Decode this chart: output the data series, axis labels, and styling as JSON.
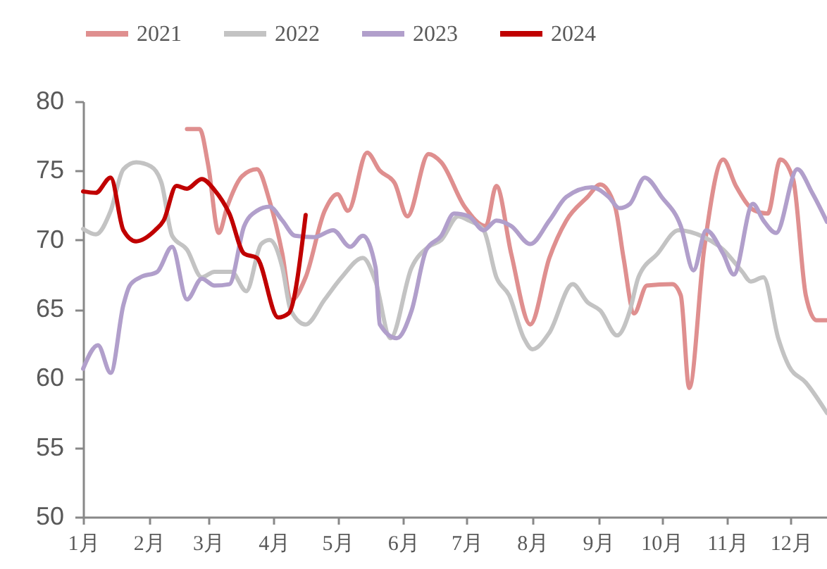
{
  "chart_data": {
    "type": "line",
    "xlim": [
      "--01-01",
      "--12-18"
    ],
    "xticks": [
      {
        "value": "--01-01",
        "label": "1月"
      },
      {
        "value": "--02-01",
        "label": "2月"
      },
      {
        "value": "--03-01",
        "label": "3月"
      },
      {
        "value": "--04-01",
        "label": "4月"
      },
      {
        "value": "--05-01",
        "label": "5月"
      },
      {
        "value": "--06-01",
        "label": "6月"
      },
      {
        "value": "--07-01",
        "label": "7月"
      },
      {
        "value": "--08-01",
        "label": "8月"
      },
      {
        "value": "--09-01",
        "label": "9月"
      },
      {
        "value": "--10-01",
        "label": "10月"
      },
      {
        "value": "--11-01",
        "label": "11月"
      },
      {
        "value": "--12-01",
        "label": "12月"
      }
    ],
    "ylim": [
      50,
      80
    ],
    "yticks": [
      50,
      55,
      60,
      65,
      70,
      75,
      80
    ],
    "grid": false,
    "legend": "top",
    "marker": "none",
    "line_style": "solid",
    "series": [
      {
        "name": "2021",
        "color": "#df8f8f",
        "x": [
          "--02-19",
          "--02-25",
          "--03-01",
          "--03-06",
          "--03-10",
          "--03-17",
          "--03-24",
          "--03-30",
          "--04-05",
          "--04-09",
          "--04-16",
          "--04-25",
          "--05-01",
          "--05-06",
          "--05-15",
          "--05-21",
          "--05-28",
          "--06-03",
          "--06-13",
          "--06-19",
          "--06-30",
          "--07-10",
          "--07-15",
          "--07-22",
          "--07-31",
          "--08-09",
          "--08-17",
          "--08-27",
          "--09-02",
          "--09-09",
          "--09-13",
          "--09-18",
          "--09-24",
          "--10-06",
          "--10-10",
          "--10-14",
          "--10-21",
          "--10-30",
          "--11-05",
          "--11-14",
          "--11-20",
          "--11-26",
          "--12-02",
          "--12-08",
          "--12-13",
          "--12-18"
        ],
        "values": [
          78.0,
          78.0,
          75.4,
          70.5,
          72.4,
          74.6,
          75.1,
          72.8,
          69.0,
          65.6,
          67.3,
          72.1,
          73.3,
          72.1,
          76.3,
          75.0,
          74.1,
          71.7,
          76.2,
          75.6,
          72.4,
          71.0,
          73.9,
          69.0,
          63.9,
          68.7,
          71.4,
          73.1,
          74.0,
          72.4,
          68.7,
          64.7,
          66.7,
          66.8,
          66.0,
          59.3,
          69.3,
          75.8,
          73.9,
          72.1,
          71.9,
          75.8,
          74.4,
          66.0,
          64.2,
          64.2
        ]
      },
      {
        "name": "2022",
        "color": "#c3c3c3",
        "x": [
          "--01-01",
          "--01-07",
          "--01-14",
          "--01-20",
          "--01-26",
          "--02-02",
          "--02-07",
          "--02-12",
          "--02-19",
          "--02-26",
          "--03-04",
          "--03-12",
          "--03-19",
          "--03-26",
          "--03-30",
          "--04-05",
          "--04-09",
          "--04-16",
          "--04-25",
          "--05-03",
          "--05-13",
          "--05-19",
          "--05-26",
          "--06-05",
          "--06-13",
          "--06-19",
          "--06-27",
          "--07-02",
          "--07-09",
          "--07-15",
          "--07-21",
          "--07-28",
          "--08-01",
          "--08-09",
          "--08-20",
          "--08-27",
          "--09-02",
          "--09-10",
          "--09-16",
          "--09-20",
          "--09-29",
          "--10-09",
          "--10-21",
          "--10-30",
          "--11-08",
          "--11-12",
          "--11-18",
          "--11-25",
          "--11-30",
          "--12-08",
          "--12-18"
        ],
        "values": [
          70.8,
          70.4,
          72.1,
          75.1,
          75.6,
          75.3,
          74.1,
          70.3,
          69.3,
          67.3,
          67.7,
          67.7,
          66.3,
          69.7,
          70.0,
          68.0,
          64.9,
          63.9,
          65.7,
          67.3,
          68.7,
          67.0,
          62.9,
          68.0,
          69.5,
          70.0,
          71.7,
          71.4,
          70.7,
          67.3,
          66.0,
          62.9,
          62.1,
          63.3,
          66.8,
          65.5,
          64.9,
          63.1,
          64.9,
          67.3,
          69.0,
          70.7,
          70.2,
          69.3,
          67.7,
          67.0,
          67.3,
          62.9,
          60.9,
          59.7,
          57.5
        ]
      },
      {
        "name": "2023",
        "color": "#b19fcb",
        "x": [
          "--01-01",
          "--01-08",
          "--01-14",
          "--01-20",
          "--01-23",
          "--01-28",
          "--02-05",
          "--02-12",
          "--02-19",
          "--02-26",
          "--03-04",
          "--03-11",
          "--03-18",
          "--03-24",
          "--03-30",
          "--04-05",
          "--04-11",
          "--04-20",
          "--04-29",
          "--05-07",
          "--05-13",
          "--05-19",
          "--05-21",
          "--05-29",
          "--06-05",
          "--06-12",
          "--06-19",
          "--06-25",
          "--07-02",
          "--07-09",
          "--07-15",
          "--07-22",
          "--07-31",
          "--08-09",
          "--08-17",
          "--08-29",
          "--09-06",
          "--09-11",
          "--09-16",
          "--09-23",
          "--10-01",
          "--10-10",
          "--10-16",
          "--10-22",
          "--10-30",
          "--11-04",
          "--11-13",
          "--11-18",
          "--11-24",
          "--12-04",
          "--12-11",
          "--12-18"
        ],
        "values": [
          60.7,
          62.4,
          60.4,
          65.3,
          66.7,
          67.3,
          67.7,
          69.5,
          65.7,
          67.2,
          66.7,
          66.8,
          71.0,
          72.1,
          72.4,
          71.4,
          70.3,
          70.2,
          70.7,
          69.5,
          70.3,
          68.0,
          63.9,
          62.9,
          64.9,
          69.3,
          70.3,
          71.9,
          71.7,
          70.7,
          71.4,
          71.0,
          69.7,
          71.4,
          73.1,
          73.8,
          73.1,
          72.3,
          72.6,
          74.5,
          73.1,
          71.0,
          67.8,
          70.7,
          69.0,
          67.5,
          72.6,
          71.4,
          70.5,
          75.1,
          73.4,
          71.3
        ]
      },
      {
        "name": "2024",
        "color": "#c00000",
        "x": [
          "--01-01",
          "--01-07",
          "--01-14",
          "--01-20",
          "--01-26",
          "--02-04",
          "--02-08",
          "--02-14",
          "--02-19",
          "--02-26",
          "--03-04",
          "--03-11",
          "--03-18",
          "--03-24",
          "--04-03",
          "--04-08",
          "--04-16"
        ],
        "values": [
          73.5,
          73.4,
          74.5,
          70.7,
          69.9,
          70.7,
          71.4,
          73.9,
          73.7,
          74.4,
          73.6,
          71.9,
          69.0,
          68.7,
          64.4,
          64.7,
          71.8
        ]
      }
    ]
  }
}
